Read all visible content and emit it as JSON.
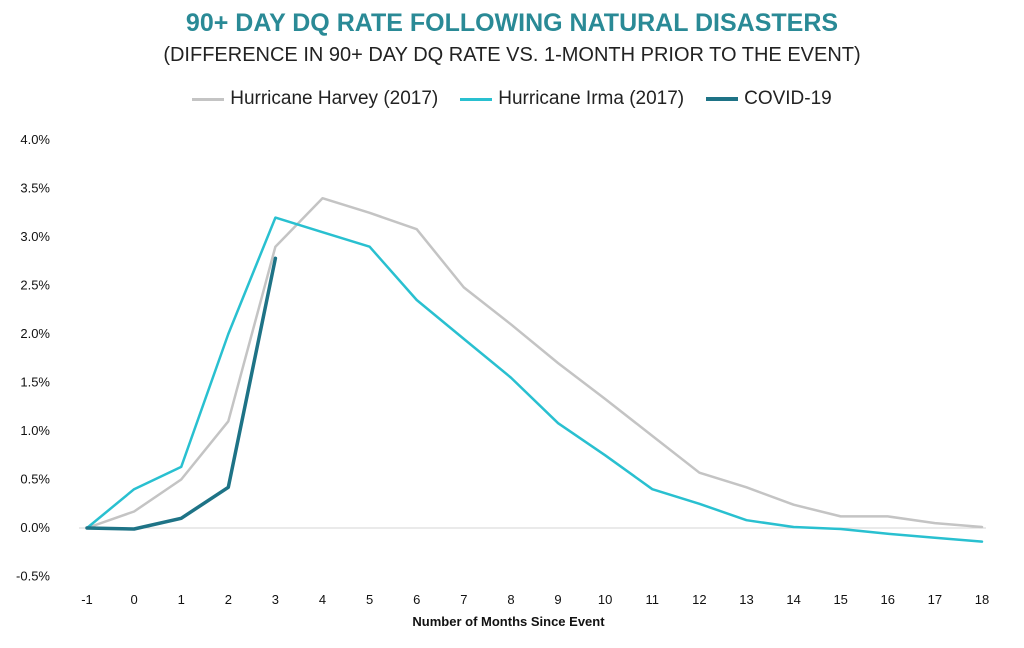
{
  "chart_data": {
    "type": "line",
    "title": "90+ DAY DQ RATE FOLLOWING NATURAL DISASTERS",
    "subtitle": "(DIFFERENCE IN 90+ DAY DQ RATE VS. 1-MONTH PRIOR TO THE EVENT)",
    "xlabel": "Number of Months Since Event",
    "ylabel": "",
    "x": [
      -1,
      0,
      1,
      2,
      3,
      4,
      5,
      6,
      7,
      8,
      9,
      10,
      11,
      12,
      13,
      14,
      15,
      16,
      17,
      18
    ],
    "x_tick_labels": [
      "-1",
      "0",
      "1",
      "2",
      "3",
      "4",
      "5",
      "6",
      "7",
      "8",
      "9",
      "10",
      "11",
      "12",
      "13",
      "14",
      "15",
      "16",
      "17",
      "18"
    ],
    "y_tick_labels": [
      "4.0%",
      "3.5%",
      "3.0%",
      "2.5%",
      "2.0%",
      "1.5%",
      "1.0%",
      "0.5%",
      "0.0%",
      "-0.5%"
    ],
    "y_ticks": [
      4.0,
      3.5,
      3.0,
      2.5,
      2.0,
      1.5,
      1.0,
      0.5,
      0.0,
      -0.5
    ],
    "ylim": [
      -0.5,
      4.0
    ],
    "xlim": [
      -1,
      18
    ],
    "grid": false,
    "legend_position": "top-center",
    "title_color": "#2a8a96",
    "series": [
      {
        "name": "Hurricane Harvey (2017)",
        "color": "#c4c4c4",
        "x": [
          -1,
          0,
          1,
          2,
          3,
          4,
          5,
          6,
          7,
          8,
          9,
          10,
          11,
          12,
          13,
          14,
          15,
          16,
          17,
          18
        ],
        "values": [
          0.0,
          0.17,
          0.5,
          1.1,
          2.9,
          3.4,
          3.25,
          3.08,
          2.48,
          2.1,
          1.7,
          1.33,
          0.95,
          0.57,
          0.42,
          0.24,
          0.12,
          0.12,
          0.05,
          0.01
        ]
      },
      {
        "name": "Hurricane Irma (2017)",
        "color": "#29c0d0",
        "x": [
          -1,
          0,
          1,
          2,
          3,
          4,
          5,
          6,
          7,
          8,
          9,
          10,
          11,
          12,
          13,
          14,
          15,
          16,
          17,
          18
        ],
        "values": [
          0.0,
          0.4,
          0.63,
          2.0,
          3.2,
          3.05,
          2.9,
          2.35,
          1.95,
          1.55,
          1.08,
          0.75,
          0.4,
          0.25,
          0.08,
          0.01,
          -0.01,
          -0.06,
          -0.1,
          -0.14
        ]
      },
      {
        "name": "COVID-19",
        "color": "#1e7386",
        "x": [
          -1,
          0,
          1,
          2,
          3
        ],
        "values": [
          0.0,
          -0.01,
          0.1,
          0.42,
          2.78
        ]
      }
    ]
  }
}
